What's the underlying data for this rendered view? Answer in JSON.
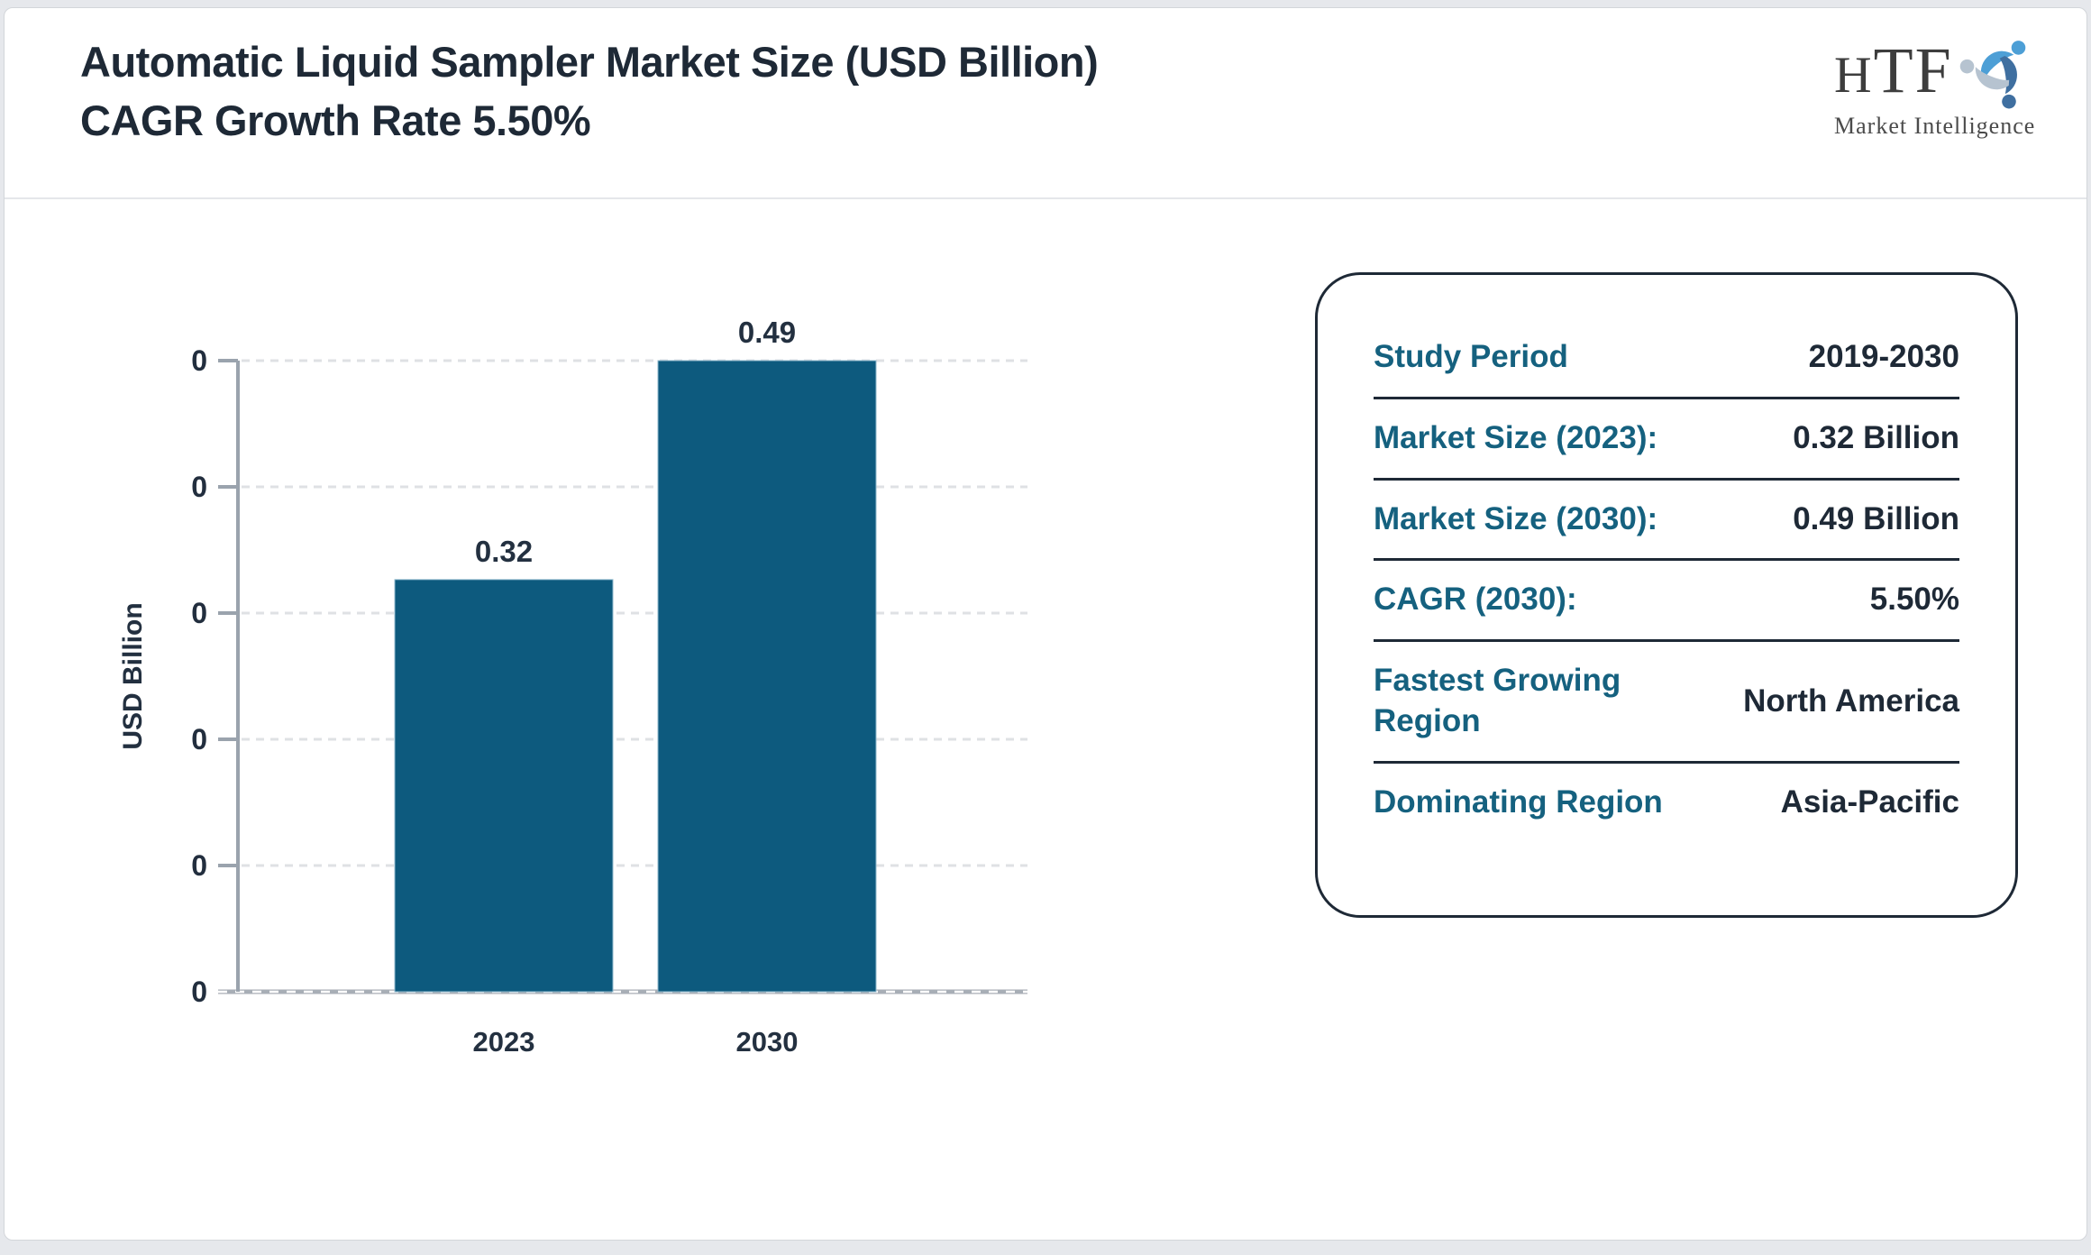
{
  "header": {
    "title": "Automatic Liquid Sampler Market Size (USD Billion) CAGR Growth Rate 5.50%"
  },
  "logo": {
    "name": "HTF",
    "tagline": "Market Intelligence"
  },
  "chart_data": {
    "type": "bar",
    "title": "Automatic Liquid Sampler Market Size (USD Billion) CAGR Growth Rate 5.50%",
    "categories": [
      "2023",
      "2030"
    ],
    "values": [
      0.32,
      0.49
    ],
    "bar_labels": [
      "0.32",
      "0.49"
    ],
    "xlabel": "",
    "ylabel": "USD Billion",
    "ylim": [
      0,
      0.49
    ],
    "y_tick_labels": [
      "0",
      "0",
      "0",
      "0",
      "0",
      "0"
    ],
    "grid": "horizontal-dashed",
    "legend": "none",
    "bar_color": "#0d5a7e"
  },
  "info_panel": {
    "rows": [
      {
        "label": "Study Period",
        "value": "2019-2030"
      },
      {
        "label": "Market Size (2023):",
        "value": "0.32 Billion"
      },
      {
        "label": "Market Size (2030):",
        "value": "0.49 Billion"
      },
      {
        "label": "CAGR (2030):",
        "value": "5.50%"
      },
      {
        "label": "Fastest Growing Region",
        "value": "North America"
      },
      {
        "label": "Dominating Region",
        "value": "Asia-Pacific"
      }
    ]
  },
  "colors": {
    "accent_teal": "#15617f",
    "navy": "#1e2936",
    "bar": "#0d5a7e",
    "axis_gray": "#9aa3ad",
    "gridline": "#dfe1e4",
    "page_bg": "#e6e8ec"
  }
}
